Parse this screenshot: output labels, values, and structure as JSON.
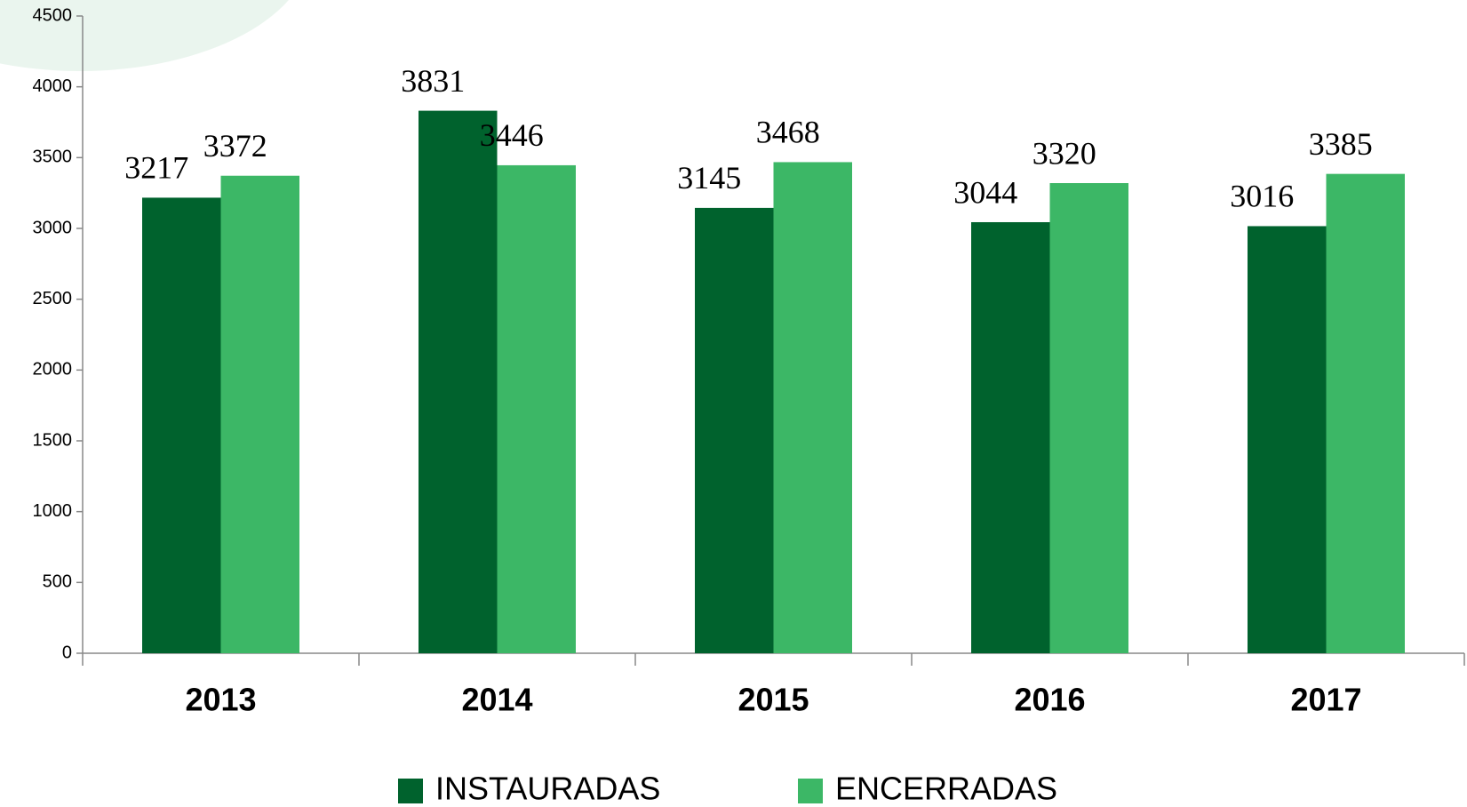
{
  "chart_data": {
    "type": "bar",
    "categories": [
      "2013",
      "2014",
      "2015",
      "2016",
      "2017"
    ],
    "series": [
      {
        "name": "INSTAURADAS",
        "color": "#00622d",
        "values": [
          3217,
          3831,
          3145,
          3044,
          3016
        ]
      },
      {
        "name": "ENCERRADAS",
        "color": "#3cb766",
        "values": [
          3372,
          3446,
          3468,
          3320,
          3385
        ]
      }
    ],
    "ylim": [
      0,
      4500
    ],
    "yticks": [
      0,
      500,
      1000,
      1500,
      2000,
      2500,
      3000,
      3500,
      4000,
      4500
    ],
    "legend": "bottom"
  }
}
